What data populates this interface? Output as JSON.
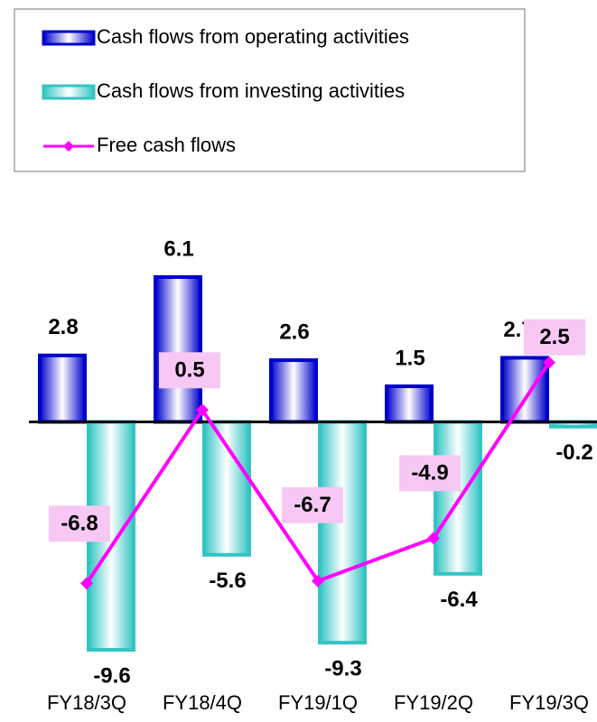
{
  "chart_data": {
    "type": "bar-line",
    "categories": [
      "FY18/3Q",
      "FY18/4Q",
      "FY19/1Q",
      "FY19/2Q",
      "FY19/3Q"
    ],
    "series": [
      {
        "name": "Cash flows from operating activities",
        "type": "bar",
        "color": "#0000cc",
        "values": [
          2.8,
          6.1,
          2.6,
          1.5,
          2.7
        ]
      },
      {
        "name": "Cash flows from investing activities",
        "type": "bar",
        "color": "#33c4c4",
        "values": [
          -9.6,
          -5.6,
          -9.3,
          -6.4,
          -0.2
        ]
      },
      {
        "name": "Free cash flows",
        "type": "line",
        "color": "#ff00ff",
        "label_fill": "#f7c8f4",
        "values": [
          -6.8,
          0.5,
          -6.7,
          -4.9,
          2.5
        ]
      }
    ],
    "legend": "top-left"
  }
}
